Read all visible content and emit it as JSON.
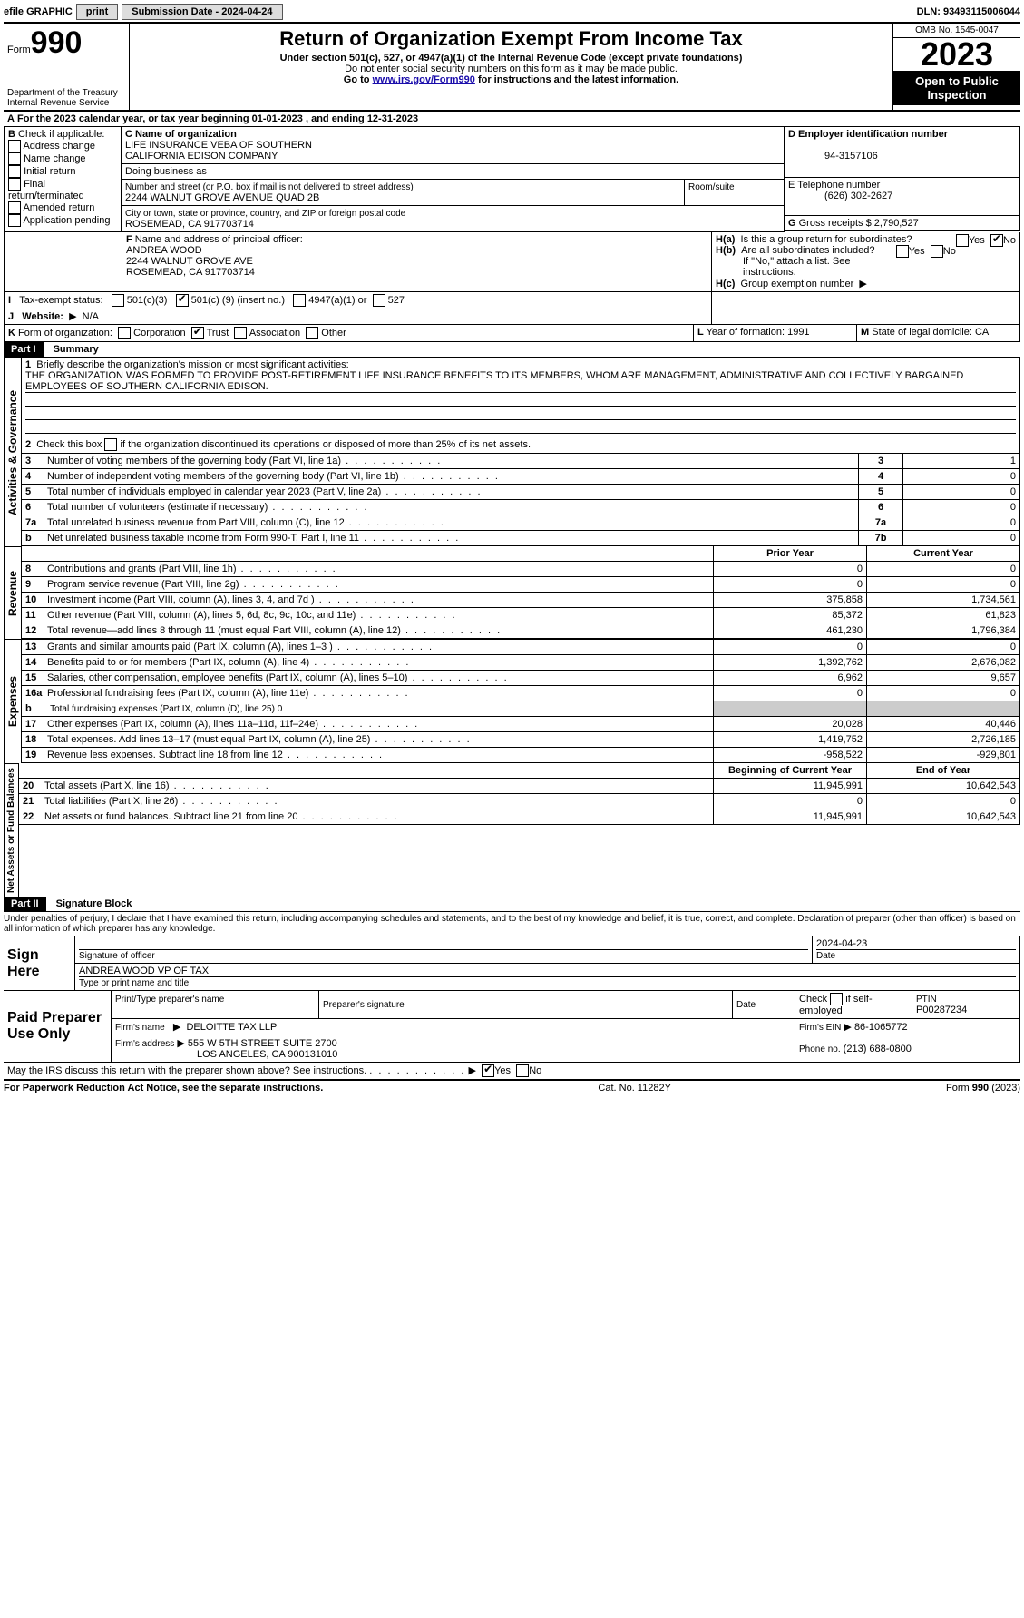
{
  "topbar": {
    "efile_label": "efile GRAPHIC",
    "print_btn": "print",
    "submission_label": "Submission Date - 2024-04-24",
    "dln_label": "DLN: 93493115006044"
  },
  "header": {
    "form_label": "Form",
    "form_number": "990",
    "dept1": "Department of the Treasury",
    "dept2": "Internal Revenue Service",
    "title": "Return of Organization Exempt From Income Tax",
    "subtitle": "Under section 501(c), 527, or 4947(a)(1) of the Internal Revenue Code (except private foundations)",
    "warn": "Do not enter social security numbers on this form as it may be made public.",
    "goto_pre": "Go to ",
    "goto_link": "www.irs.gov/Form990",
    "goto_post": " for instructions and the latest information.",
    "omb": "OMB No. 1545-0047",
    "year": "2023",
    "open": "Open to Public Inspection"
  },
  "lineA": {
    "text_pre": "For the 2023 calendar year, or tax year beginning ",
    "begin": "01-01-2023",
    "mid": "   , and ending ",
    "end": "12-31-2023"
  },
  "B": {
    "label": "B",
    "check_label": "Check if applicable:",
    "items": [
      "Address change",
      "Name change",
      "Initial return",
      "Final return/terminated",
      "Amended return",
      "Application pending"
    ]
  },
  "C": {
    "name_label": "C Name of organization",
    "name1": "LIFE INSURANCE VEBA OF SOUTHERN",
    "name2": "CALIFORNIA EDISON COMPANY",
    "dba_label": "Doing business as",
    "street_label": "Number and street (or P.O. box if mail is not delivered to street address)",
    "street": "2244 WALNUT GROVE AVENUE QUAD 2B",
    "room_label": "Room/suite",
    "city_label": "City or town, state or province, country, and ZIP or foreign postal code",
    "city": "ROSEMEAD, CA  917703714"
  },
  "D": {
    "label": "D Employer identification number",
    "value": "94-3157106"
  },
  "E": {
    "label": "E Telephone number",
    "value": "(626) 302-2627"
  },
  "G": {
    "label": "G",
    "text": "Gross receipts $",
    "value": "2,790,527"
  },
  "F": {
    "label": "F",
    "text": "Name and address of principal officer:",
    "name": "ANDREA WOOD",
    "addr1": "2244 WALNUT GROVE AVE",
    "addr2": "ROSEMEAD, CA  917703714"
  },
  "H": {
    "a_label": "H(a)",
    "a_text": "Is this a group return for subordinates?",
    "yes": "Yes",
    "no": "No",
    "b_label": "H(b)",
    "b_text": "Are all subordinates included?",
    "b_note": "If \"No,\" attach a list. See instructions.",
    "c_label": "H(c)",
    "c_text": "Group exemption number",
    "c_arrow": "▶"
  },
  "I": {
    "label": "I",
    "text": "Tax-exempt status:",
    "opt1": "501(c)(3)",
    "opt2_pre": "501(c) (",
    "opt2_num": "9",
    "opt2_post": ") (insert no.)",
    "opt3": "4947(a)(1) or",
    "opt4": "527"
  },
  "J": {
    "label": "J",
    "text": "Website:",
    "arrow": "▶",
    "value": "N/A"
  },
  "K": {
    "label": "K",
    "text": "Form of organization:",
    "opts": [
      "Corporation",
      "Trust",
      "Association",
      "Other"
    ]
  },
  "L": {
    "label": "L",
    "text": "Year of formation:",
    "value": "1991"
  },
  "M": {
    "label": "M",
    "text": "State of legal domicile:",
    "value": "CA"
  },
  "partI": {
    "hdr": "Part I",
    "title": "Summary"
  },
  "summary": {
    "l1_label": "1",
    "l1_text": "Briefly describe the organization's mission or most significant activities:",
    "l1_desc": "THE ORGANIZATION WAS FORMED TO PROVIDE POST-RETIREMENT LIFE INSURANCE BENEFITS TO ITS MEMBERS, WHOM ARE MANAGEMENT, ADMINISTRATIVE AND COLLECTIVELY BARGAINED EMPLOYEES OF SOUTHERN CALIFORNIA EDISON.",
    "l2_label": "2",
    "l2_text": "Check this box         if the organization discontinued its operations or disposed of more than 25% of its net assets.",
    "rows_ag": [
      {
        "n": "3",
        "text": "Number of voting members of the governing body (Part VI, line 1a)",
        "box": "3",
        "val": "1"
      },
      {
        "n": "4",
        "text": "Number of independent voting members of the governing body (Part VI, line 1b)",
        "box": "4",
        "val": "0"
      },
      {
        "n": "5",
        "text": "Total number of individuals employed in calendar year 2023 (Part V, line 2a)",
        "box": "5",
        "val": "0"
      },
      {
        "n": "6",
        "text": "Total number of volunteers (estimate if necessary)",
        "box": "6",
        "val": "0"
      },
      {
        "n": "7a",
        "text": "Total unrelated business revenue from Part VIII, column (C), line 12",
        "box": "7a",
        "val": "0"
      },
      {
        "n": "b",
        "text": "Net unrelated business taxable income from Form 990-T, Part I, line 11",
        "box": "7b",
        "val": "0"
      }
    ],
    "col_prior": "Prior Year",
    "col_current": "Current Year",
    "rev_rows": [
      {
        "n": "8",
        "text": "Contributions and grants (Part VIII, line 1h)",
        "p": "0",
        "c": "0"
      },
      {
        "n": "9",
        "text": "Program service revenue (Part VIII, line 2g)",
        "p": "0",
        "c": "0"
      },
      {
        "n": "10",
        "text": "Investment income (Part VIII, column (A), lines 3, 4, and 7d )",
        "p": "375,858",
        "c": "1,734,561"
      },
      {
        "n": "11",
        "text": "Other revenue (Part VIII, column (A), lines 5, 6d, 8c, 9c, 10c, and 11e)",
        "p": "85,372",
        "c": "61,823"
      },
      {
        "n": "12",
        "text": "Total revenue—add lines 8 through 11 (must equal Part VIII, column (A), line 12)",
        "p": "461,230",
        "c": "1,796,384"
      }
    ],
    "exp_rows": [
      {
        "n": "13",
        "text": "Grants and similar amounts paid (Part IX, column (A), lines 1–3 )",
        "p": "0",
        "c": "0"
      },
      {
        "n": "14",
        "text": "Benefits paid to or for members (Part IX, column (A), line 4)",
        "p": "1,392,762",
        "c": "2,676,082"
      },
      {
        "n": "15",
        "text": "Salaries, other compensation, employee benefits (Part IX, column (A), lines 5–10)",
        "p": "6,962",
        "c": "9,657"
      },
      {
        "n": "16a",
        "text": "Professional fundraising fees (Part IX, column (A), line 11e)",
        "p": "0",
        "c": "0"
      }
    ],
    "exp_b_n": "b",
    "exp_b_text": "Total fundraising expenses (Part IX, column (D), line 25) 0",
    "exp_rows2": [
      {
        "n": "17",
        "text": "Other expenses (Part IX, column (A), lines 11a–11d, 11f–24e)",
        "p": "20,028",
        "c": "40,446"
      },
      {
        "n": "18",
        "text": "Total expenses. Add lines 13–17 (must equal Part IX, column (A), line 25)",
        "p": "1,419,752",
        "c": "2,726,185"
      },
      {
        "n": "19",
        "text": "Revenue less expenses. Subtract line 18 from line 12",
        "p": "-958,522",
        "c": "-929,801"
      }
    ],
    "col_begin": "Beginning of Current Year",
    "col_end": "End of Year",
    "net_rows": [
      {
        "n": "20",
        "text": "Total assets (Part X, line 16)",
        "p": "11,945,991",
        "c": "10,642,543"
      },
      {
        "n": "21",
        "text": "Total liabilities (Part X, line 26)",
        "p": "0",
        "c": "0"
      },
      {
        "n": "22",
        "text": "Net assets or fund balances. Subtract line 21 from line 20",
        "p": "11,945,991",
        "c": "10,642,543"
      }
    ]
  },
  "side_labels": {
    "ag": "Activities & Governance",
    "rev": "Revenue",
    "exp": "Expenses",
    "net": "Net Assets or Fund Balances"
  },
  "partII": {
    "hdr": "Part II",
    "title": "Signature Block"
  },
  "sig": {
    "perjury": "Under penalties of perjury, I declare that I have examined this return, including accompanying schedules and statements, and to the best of my knowledge and belief, it is true, correct, and complete. Declaration of preparer (other than officer) is based on all information of which preparer has any knowledge.",
    "sign_here": "Sign Here",
    "sig_officer": "Signature of officer",
    "date_label": "Date",
    "sig_date": "2024-04-23",
    "name_title": "ANDREA WOOD  VP OF TAX",
    "type_label": "Type or print name and title",
    "paid": "Paid Preparer Use Only",
    "prep_name_label": "Print/Type preparer's name",
    "prep_sig_label": "Preparer's signature",
    "check_self": "Check         if self-employed",
    "ptin_label": "PTIN",
    "ptin": "P00287234",
    "firm_name_label": "Firm's name",
    "firm_name": "DELOITTE TAX LLP",
    "firm_ein_label": "Firm's EIN",
    "firm_ein": "86-1065772",
    "firm_addr_label": "Firm's address",
    "firm_addr1": "555 W 5TH STREET SUITE 2700",
    "firm_addr2": "LOS ANGELES, CA  900131010",
    "phone_label": "Phone no.",
    "phone": "(213) 688-0800",
    "discuss": "May the IRS discuss this return with the preparer shown above? See instructions.",
    "arrow": "▶"
  },
  "footer": {
    "left": "For Paperwork Reduction Act Notice, see the separate instructions.",
    "mid": "Cat. No. 11282Y",
    "right_pre": "Form ",
    "right_form": "990",
    "right_post": " (2023)"
  }
}
